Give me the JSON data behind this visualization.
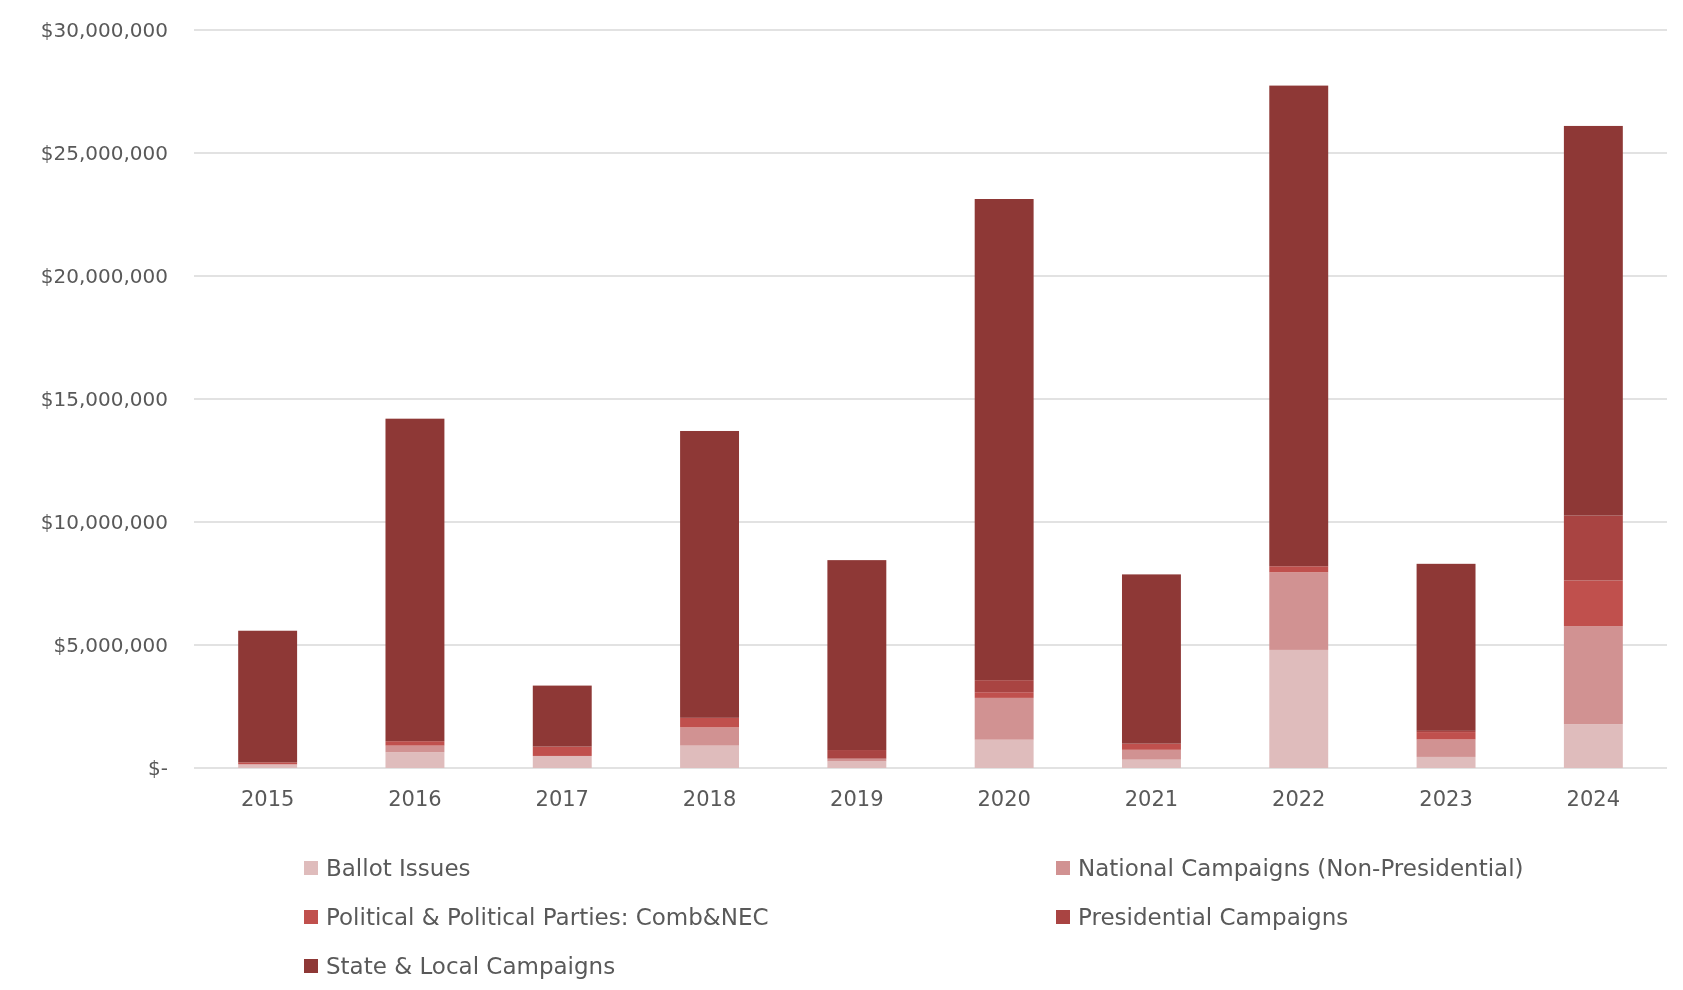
{
  "chart_data": {
    "type": "bar",
    "stacked": true,
    "categories": [
      "2015",
      "2016",
      "2017",
      "2018",
      "2019",
      "2020",
      "2021",
      "2022",
      "2023",
      "2024"
    ],
    "series": [
      {
        "name": "Ballot Issues",
        "color": "#dfbcbc",
        "values": [
          150000,
          640000,
          490000,
          910000,
          270000,
          1150000,
          340000,
          4800000,
          450000,
          1780000
        ]
      },
      {
        "name": "National Campaigns (Non-Presidential)",
        "color": "#d19292",
        "values": [
          null,
          270000,
          0,
          740000,
          110000,
          1700000,
          400000,
          3160000,
          710000,
          3990000
        ]
      },
      {
        "name": "Political & Political Parties: Comb&NEC",
        "color": "#c0504d",
        "values": [
          80000,
          180000,
          380000,
          390000,
          0,
          230000,
          250000,
          240000,
          300000,
          1850000
        ]
      },
      {
        "name": "Presidential Campaigns",
        "color": "#a94442",
        "values": [
          0,
          0,
          0,
          0,
          350000,
          490000,
          0,
          0,
          50000,
          2640000
        ]
      },
      {
        "name": "State & Local Campaigns",
        "color": "#8e3836",
        "values": [
          5350000,
          13110000,
          2480000,
          11660000,
          7720000,
          19560000,
          6880000,
          19540000,
          6790000,
          15840000
        ]
      }
    ],
    "ylim": [
      0,
      30000000
    ],
    "yticks": [
      {
        "value": 0,
        "label": "$-"
      },
      {
        "value": 5000000,
        "label": "$5,000,000"
      },
      {
        "value": 10000000,
        "label": "$10,000,000"
      },
      {
        "value": 15000000,
        "label": "$15,000,000"
      },
      {
        "value": 20000000,
        "label": "$20,000,000"
      },
      {
        "value": 25000000,
        "label": "$25,000,000"
      },
      {
        "value": 30000000,
        "label": "$30,000,000"
      }
    ],
    "grid": "y",
    "legend": "bottom"
  }
}
